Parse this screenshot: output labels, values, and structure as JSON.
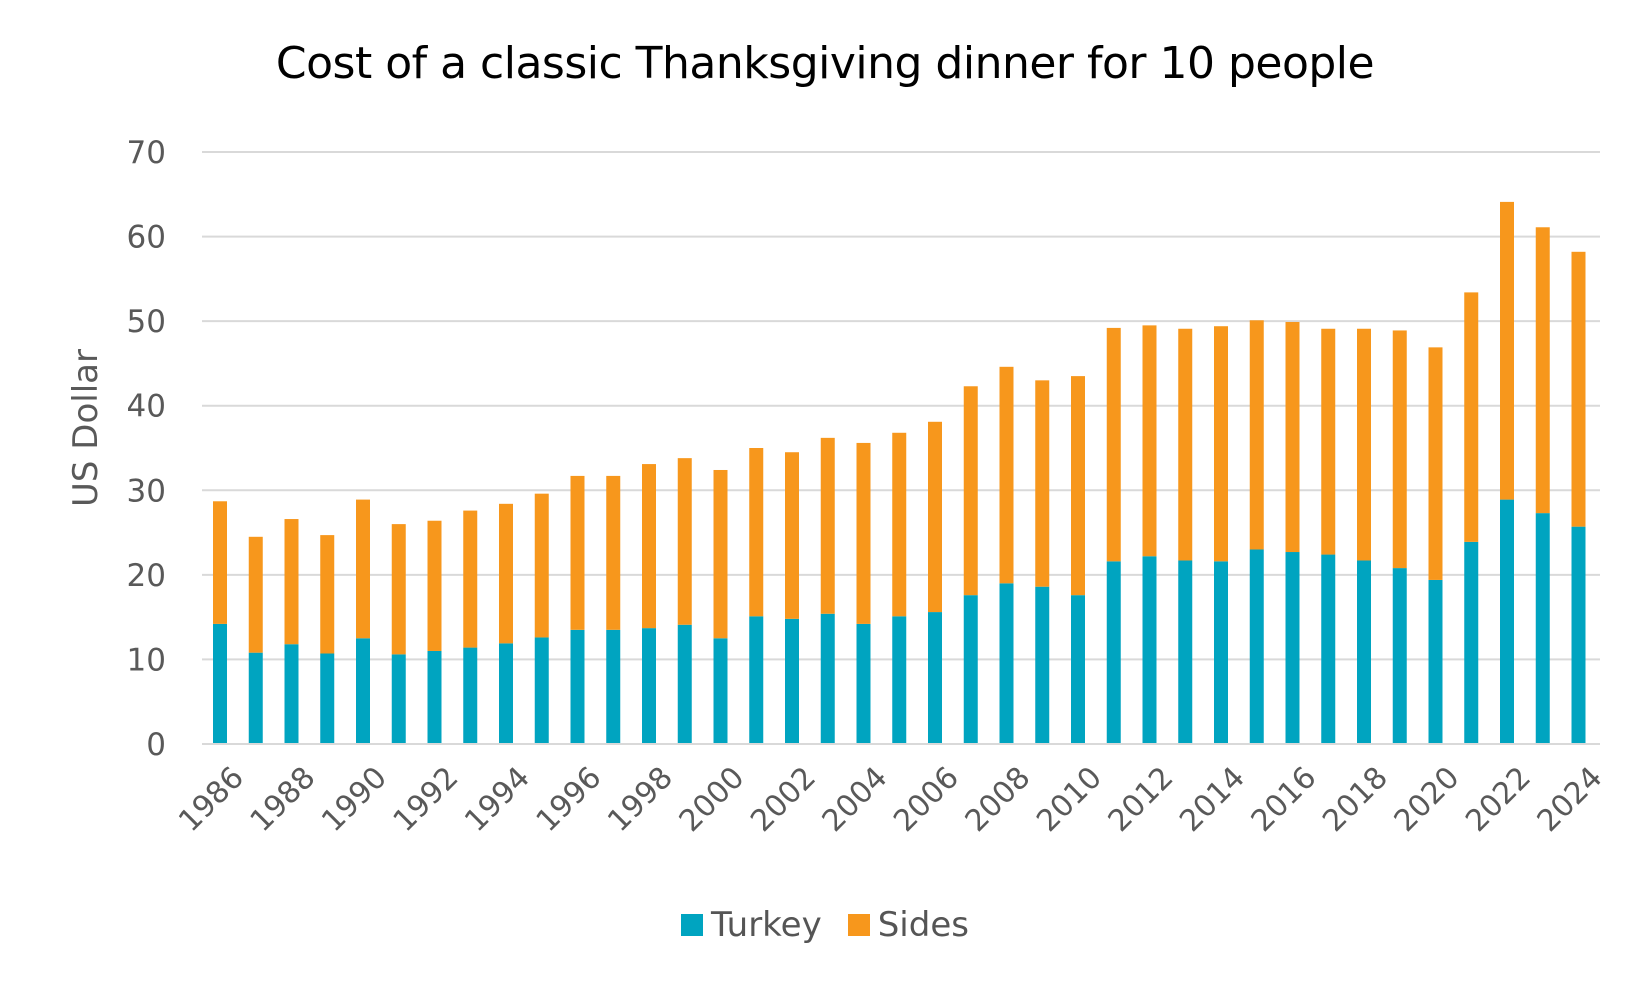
{
  "chart_data": {
    "type": "bar",
    "stacked": true,
    "title": "Cost of a classic Thanksgiving dinner for 10 people",
    "ylabel": "US Dollar",
    "xlabel": "",
    "ylim": [
      0,
      70
    ],
    "yticks": [
      0,
      10,
      20,
      30,
      40,
      50,
      60,
      70
    ],
    "grid": true,
    "legend_position": "bottom",
    "categories": [
      "1986",
      "1987",
      "1988",
      "1989",
      "1990",
      "1991",
      "1992",
      "1993",
      "1994",
      "1995",
      "1996",
      "1997",
      "1998",
      "1999",
      "2000",
      "2001",
      "2002",
      "2003",
      "2004",
      "2005",
      "2006",
      "2007",
      "2008",
      "2009",
      "2010",
      "2011",
      "2012",
      "2013",
      "2014",
      "2015",
      "2016",
      "2017",
      "2018",
      "2019",
      "2020",
      "2021",
      "2022",
      "2023",
      "2024"
    ],
    "x_tick_labels": [
      "1986",
      "",
      "1988",
      "",
      "1990",
      "",
      "1992",
      "",
      "1994",
      "",
      "1996",
      "",
      "1998",
      "",
      "2000",
      "",
      "2002",
      "",
      "2004",
      "",
      "2006",
      "",
      "2008",
      "",
      "2010",
      "",
      "2012",
      "",
      "2014",
      "",
      "2016",
      "",
      "2018",
      "",
      "2020",
      "",
      "2022",
      "",
      "2024"
    ],
    "series": [
      {
        "name": "Turkey",
        "color": "#00A4C0",
        "values": [
          14.2,
          10.8,
          11.8,
          10.7,
          12.5,
          10.6,
          11.0,
          11.4,
          11.9,
          12.6,
          13.5,
          13.5,
          13.7,
          14.1,
          12.5,
          15.1,
          14.8,
          15.4,
          14.2,
          15.1,
          15.6,
          17.6,
          19.0,
          18.6,
          17.6,
          21.6,
          22.2,
          21.7,
          21.6,
          23.0,
          22.7,
          22.4,
          21.7,
          20.8,
          19.4,
          23.9,
          28.9,
          27.3,
          25.7
        ]
      },
      {
        "name": "Sides",
        "color": "#F7971C",
        "values": [
          14.5,
          13.7,
          14.8,
          14.0,
          16.4,
          15.4,
          15.4,
          16.2,
          16.5,
          17.0,
          18.2,
          18.2,
          19.4,
          19.7,
          19.9,
          19.9,
          19.7,
          20.8,
          21.4,
          21.7,
          22.5,
          24.7,
          25.6,
          24.4,
          25.9,
          27.6,
          27.3,
          27.4,
          27.8,
          27.1,
          27.2,
          26.7,
          27.4,
          28.1,
          27.5,
          29.5,
          35.2,
          33.8,
          32.5
        ]
      }
    ]
  }
}
